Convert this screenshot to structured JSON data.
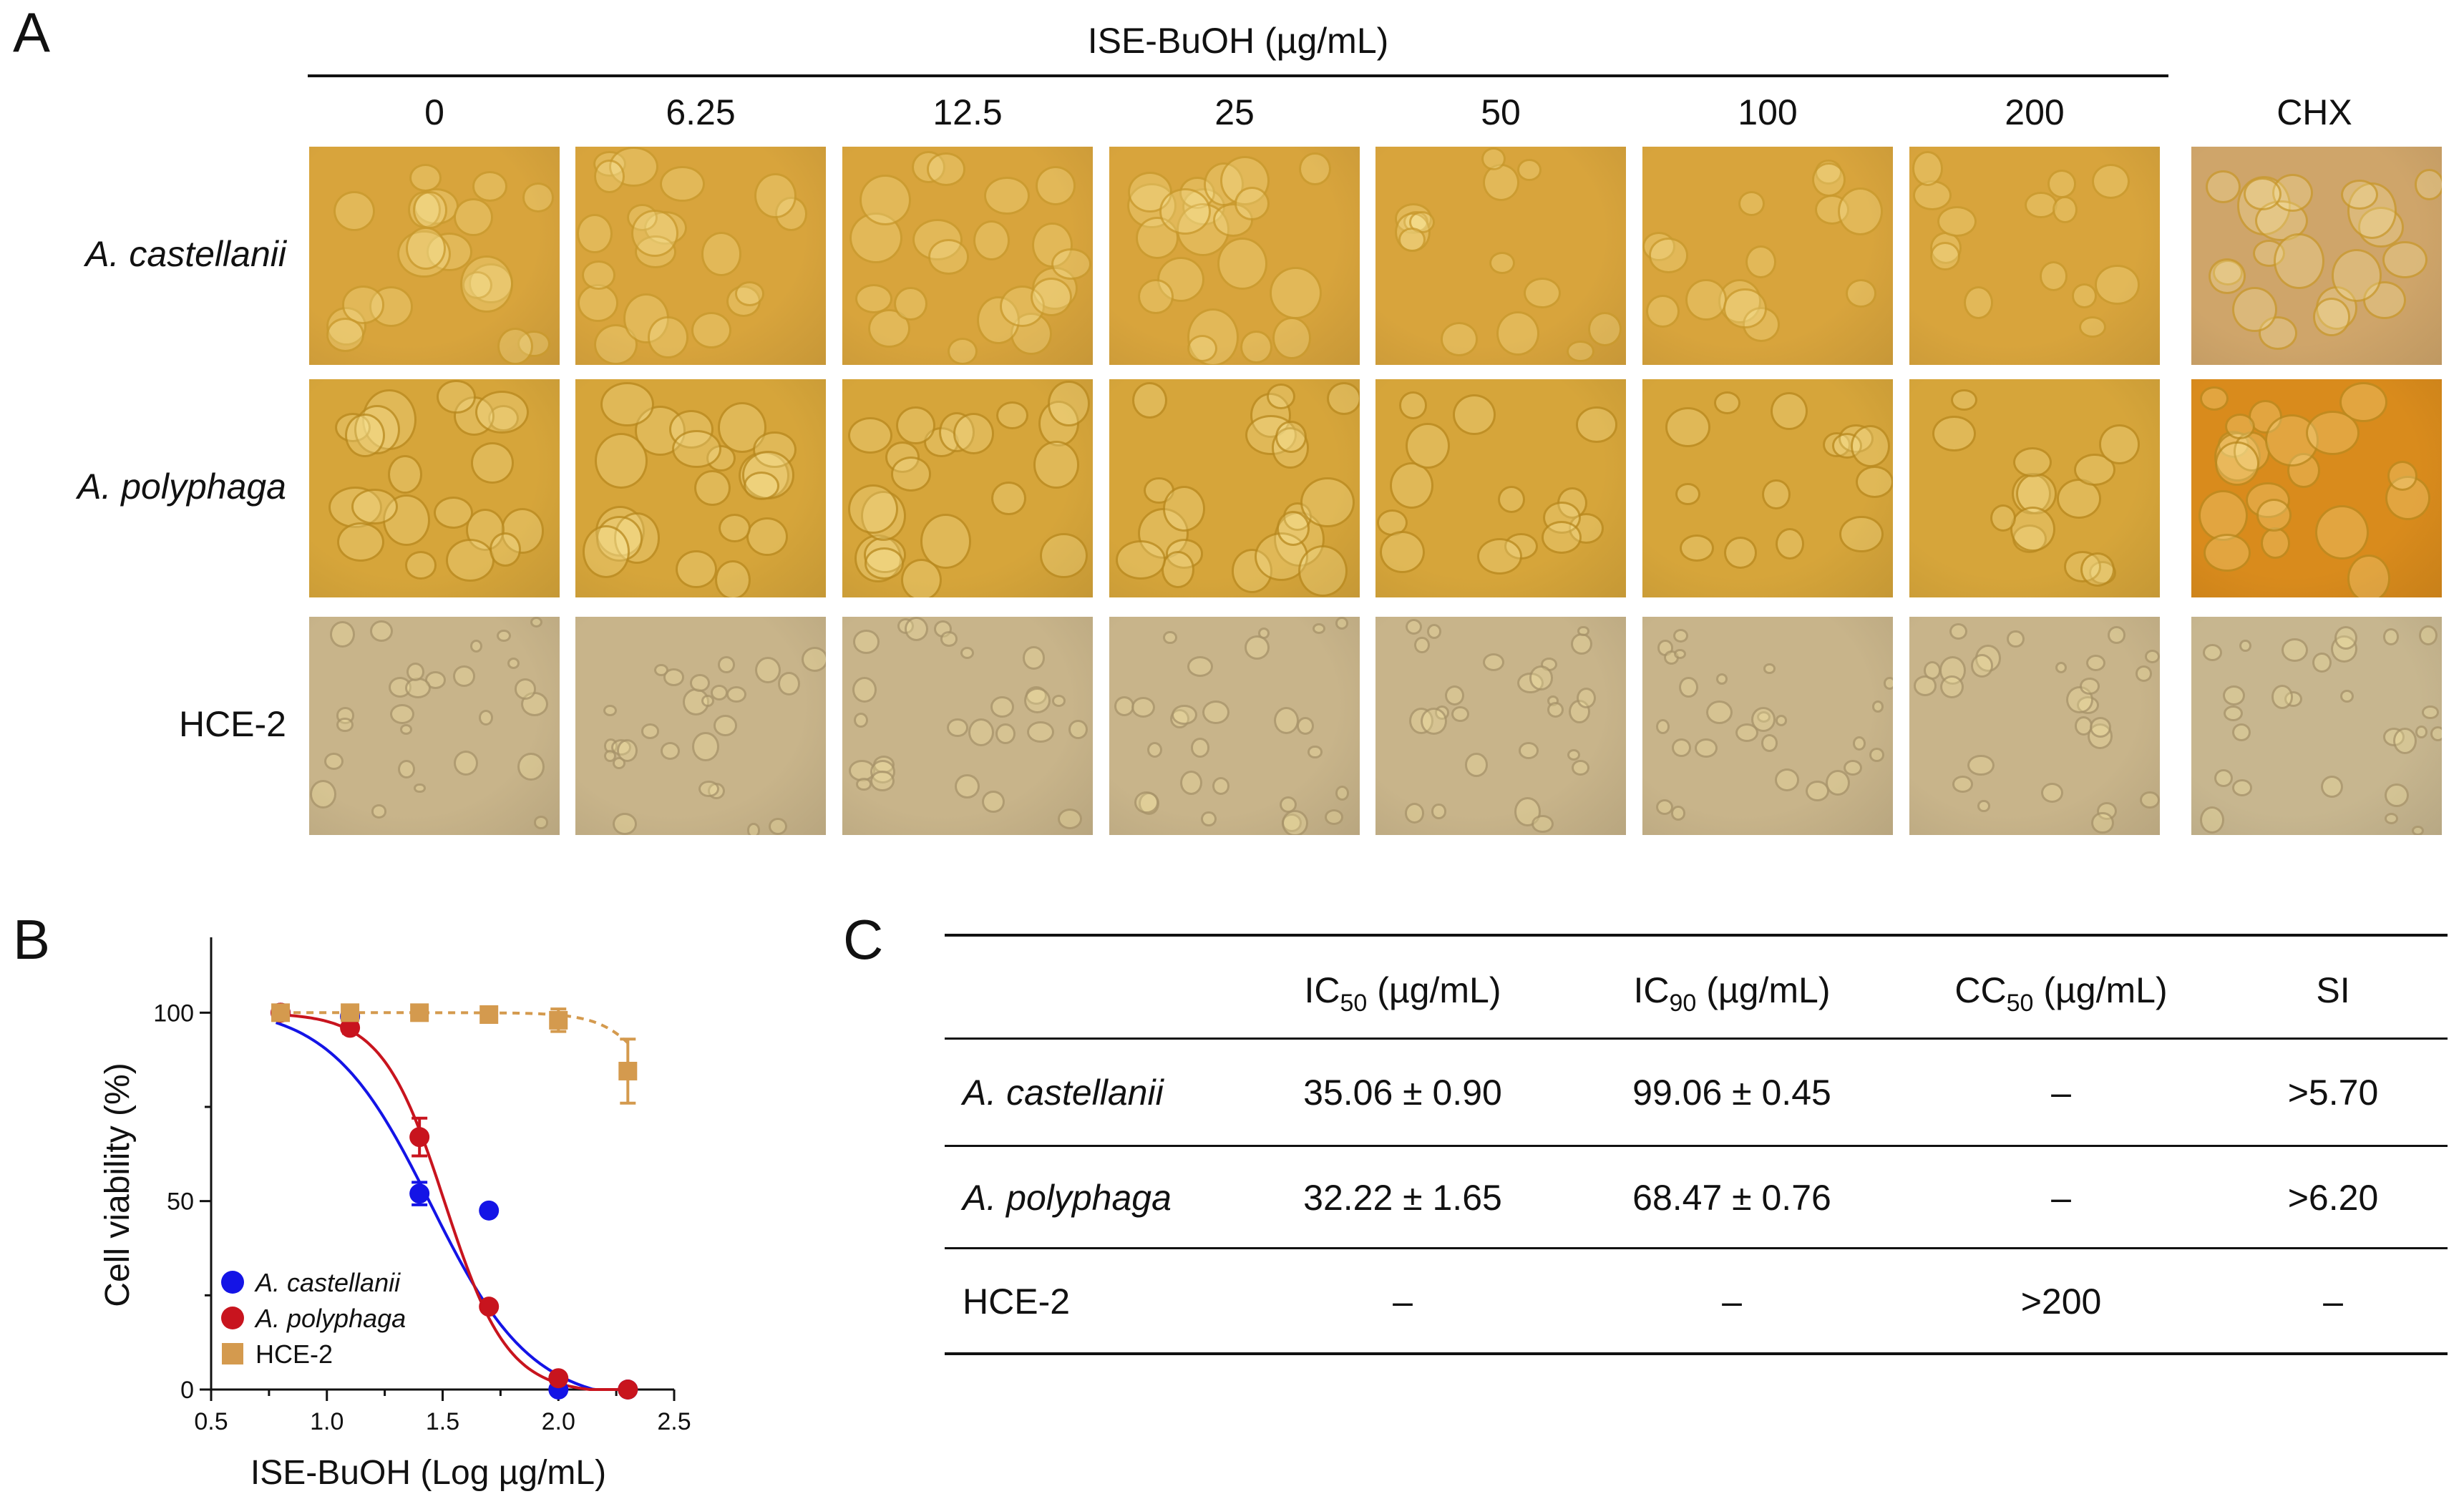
{
  "panelA": {
    "label": "A",
    "header_title": "ISE-BuOH (µg/mL)",
    "concentrations": [
      "0",
      "6.25",
      "12.5",
      "25",
      "50",
      "100",
      "200"
    ],
    "control_label": "CHX",
    "rows": [
      {
        "label": "A. castellanii",
        "italic": true,
        "tint": "#d8a43c",
        "cell_color": "#c99a2e"
      },
      {
        "label": "A. polyphaga",
        "italic": true,
        "tint": "#d6a53a",
        "cell_color": "#b98a20"
      },
      {
        "label": "HCE-2",
        "italic": false,
        "tint": "#c8b48a",
        "cell_color": "#a8946a"
      }
    ],
    "control_tints": [
      "#cfa56a",
      "#d98b1c",
      "#c7b68f"
    ]
  },
  "panelB": {
    "label": "B"
  },
  "panelC": {
    "label": "C",
    "headers": [
      {
        "base": "IC",
        "sub": "50",
        "unit": " (µg/mL)"
      },
      {
        "base": "IC",
        "sub": "90",
        "unit": " (µg/mL)"
      },
      {
        "base": "CC",
        "sub": "50",
        "unit": " (µg/mL)"
      },
      {
        "base": "SI",
        "sub": "",
        "unit": ""
      }
    ],
    "rows": [
      {
        "name": "A. castellanii",
        "italic": true,
        "values": [
          "35.06 ± 0.90",
          "99.06 ± 0.45",
          "–",
          ">5.70"
        ]
      },
      {
        "name": "A. polyphaga",
        "italic": true,
        "values": [
          "32.22 ± 1.65",
          "68.47 ± 0.76",
          "–",
          ">6.20"
        ]
      },
      {
        "name": "HCE-2",
        "italic": false,
        "values": [
          "–",
          "–",
          ">200",
          "–"
        ]
      }
    ]
  },
  "chart_data": {
    "type": "scatter",
    "xlabel": "ISE-BuOH (Log µg/mL)",
    "ylabel": "Cell viability (%)",
    "xlim": [
      0.5,
      2.5
    ],
    "ylim": [
      0,
      120
    ],
    "xticks": [
      "0.5",
      "1.0",
      "1.5",
      "2.0",
      "2.5"
    ],
    "yticks": [
      "0",
      "50",
      "100"
    ],
    "legend_position": "bottom-left",
    "series": [
      {
        "name": "A. castellanii",
        "color": "#1414e6",
        "marker": "circle",
        "line": "solid",
        "x": [
          0.8,
          1.1,
          1.4,
          1.7,
          2.0,
          2.3
        ],
        "y": [
          100,
          99,
          52,
          47.5,
          0,
          0
        ],
        "err": [
          1.5,
          1.5,
          3,
          1,
          0.5,
          0.5
        ],
        "fit": {
          "top": 102,
          "bottom": -4,
          "logIC50": 1.45,
          "hill": -2.0
        }
      },
      {
        "name": "A. polyphaga",
        "color": "#c8141e",
        "marker": "circle",
        "line": "solid",
        "x": [
          0.8,
          1.1,
          1.4,
          1.7,
          2.0,
          2.3
        ],
        "y": [
          100,
          96,
          67,
          22,
          3,
          0
        ],
        "err": [
          1.5,
          1.5,
          5,
          1,
          0.5,
          0.5
        ],
        "fit": {
          "top": 100,
          "bottom": -1,
          "logIC50": 1.51,
          "hill": -3.2
        }
      },
      {
        "name": "HCE-2",
        "color": "#d49a4e",
        "marker": "square",
        "line": "dashed",
        "x": [
          0.8,
          1.1,
          1.4,
          1.7,
          2.0,
          2.3
        ],
        "y": [
          100,
          100,
          100,
          99.5,
          98,
          84.5
        ],
        "err": [
          1.5,
          2,
          1,
          1,
          3,
          8.5
        ],
        "fit": {
          "top": 100,
          "bottom": 60,
          "logIC50": 2.45,
          "hill": -4.0
        }
      }
    ]
  }
}
